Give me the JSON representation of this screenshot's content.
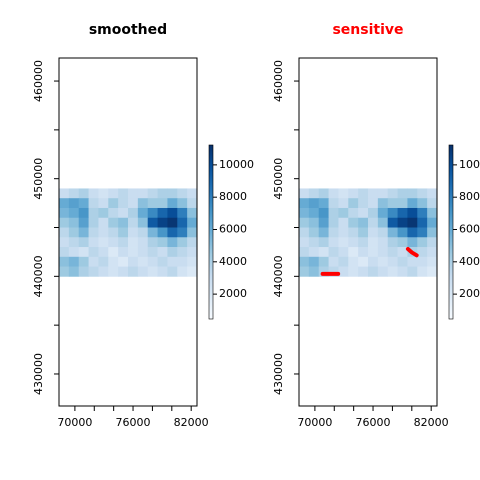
{
  "chart_data": [
    {
      "type": "raster",
      "title": "smoothed",
      "title_color": "#000000",
      "xlim": [
        68360,
        82600
      ],
      "xticks": [
        70000,
        76000,
        82000
      ],
      "xminorticks": [
        72000,
        74000,
        78000,
        80000
      ],
      "ylim": [
        426720,
        462360
      ],
      "yticks": [
        430000,
        440000,
        450000,
        460000
      ],
      "yminorticks": [
        435000,
        445000,
        455000
      ],
      "raster_extent": {
        "x": [
          68360,
          82600
        ],
        "y": [
          440000,
          449000
        ]
      },
      "zlim": [
        460,
        11230
      ],
      "zticks": [
        2000,
        4000,
        6000,
        8000,
        10000
      ],
      "colormap": [
        "#f7fbff",
        "#deebf7",
        "#c6dbef",
        "#9ecae1",
        "#6baed6",
        "#4292c6",
        "#2171b5",
        "#08519c",
        "#08306b"
      ],
      "z": [
        [
          3000,
          3500,
          4000,
          3000,
          2500,
          3000,
          3500,
          3000,
          3000,
          3500,
          4000,
          4000,
          3500,
          3000
        ],
        [
          6000,
          6500,
          6000,
          3500,
          3000,
          4500,
          3500,
          3000,
          5000,
          4500,
          4500,
          6000,
          5000,
          3500
        ],
        [
          5500,
          6000,
          7000,
          4000,
          4500,
          3500,
          3000,
          4000,
          6000,
          7500,
          9000,
          10000,
          8000,
          5000
        ],
        [
          4500,
          5000,
          6500,
          4000,
          3000,
          4500,
          5000,
          3500,
          5000,
          9500,
          10500,
          11000,
          9000,
          6000
        ],
        [
          3500,
          4500,
          5500,
          3500,
          3000,
          3500,
          4500,
          3000,
          3500,
          5500,
          7000,
          9000,
          8000,
          5000
        ],
        [
          3000,
          3500,
          4000,
          3000,
          2500,
          3000,
          3500,
          2500,
          3000,
          4000,
          4500,
          5500,
          4500,
          3500
        ],
        [
          3500,
          3000,
          2500,
          3500,
          3000,
          2000,
          3000,
          2500,
          3000,
          3500,
          3000,
          4000,
          3500,
          3000
        ],
        [
          5000,
          5500,
          4500,
          3000,
          3500,
          2500,
          2000,
          3000,
          2500,
          3000,
          3500,
          3000,
          3000,
          2500
        ],
        [
          4500,
          5000,
          4000,
          3500,
          3000,
          2500,
          3000,
          3500,
          3000,
          2500,
          3000,
          3500,
          2500,
          2000
        ]
      ]
    },
    {
      "type": "raster",
      "title": "sensitive",
      "title_color": "#ff0000",
      "xlim": [
        68360,
        82600
      ],
      "xticks": [
        70000,
        76000,
        82000
      ],
      "xminorticks": [
        72000,
        74000,
        78000,
        80000
      ],
      "ylim": [
        426720,
        462360
      ],
      "yticks": [
        430000,
        440000,
        450000,
        460000
      ],
      "yminorticks": [
        435000,
        445000,
        455000
      ],
      "raster_extent": {
        "x": [
          68360,
          82600
        ],
        "y": [
          440000,
          449000
        ]
      },
      "zlim": [
        460,
        11230
      ],
      "zticks": [
        2000,
        4000,
        6000,
        8000,
        10000
      ],
      "colormap": [
        "#f7fbff",
        "#deebf7",
        "#c6dbef",
        "#9ecae1",
        "#6baed6",
        "#4292c6",
        "#2171b5",
        "#08519c",
        "#08306b"
      ],
      "z": [
        [
          3000,
          3500,
          4000,
          3000,
          2500,
          3000,
          3500,
          3000,
          3000,
          3500,
          4000,
          4000,
          3500,
          3000
        ],
        [
          6000,
          6500,
          6000,
          3500,
          3000,
          4500,
          3500,
          3000,
          5000,
          4500,
          4500,
          6000,
          5000,
          3500
        ],
        [
          5500,
          6000,
          7000,
          4000,
          4500,
          3500,
          3000,
          4000,
          6000,
          7500,
          9000,
          10000,
          8000,
          5000
        ],
        [
          4500,
          5000,
          6500,
          4000,
          3000,
          4500,
          5000,
          3500,
          5000,
          9500,
          10500,
          11000,
          9000,
          6000
        ],
        [
          3500,
          4500,
          5500,
          3500,
          3000,
          3500,
          4500,
          3000,
          3500,
          5500,
          7000,
          9000,
          8000,
          5000
        ],
        [
          3000,
          3500,
          4000,
          3000,
          2500,
          3000,
          3500,
          2500,
          3000,
          4000,
          4500,
          5500,
          4500,
          3500
        ],
        [
          3500,
          3000,
          2500,
          3500,
          3000,
          2000,
          3000,
          2500,
          3000,
          3500,
          3000,
          4000,
          3500,
          3000
        ],
        [
          5000,
          5500,
          4500,
          3000,
          3500,
          2500,
          2000,
          3000,
          2500,
          3000,
          3500,
          3000,
          3000,
          2500
        ],
        [
          4500,
          5000,
          4000,
          3500,
          3000,
          2500,
          3000,
          3500,
          3000,
          2500,
          3000,
          3500,
          2500,
          2000
        ]
      ],
      "sensitive_color": "#ff0000",
      "sensitive_regions": [
        {
          "x": [
            70800,
            72400
          ],
          "y": [
            440250,
            440250
          ]
        },
        {
          "x": [
            79600,
            80000,
            80500
          ],
          "y": [
            442800,
            442450,
            442150
          ]
        }
      ]
    }
  ]
}
